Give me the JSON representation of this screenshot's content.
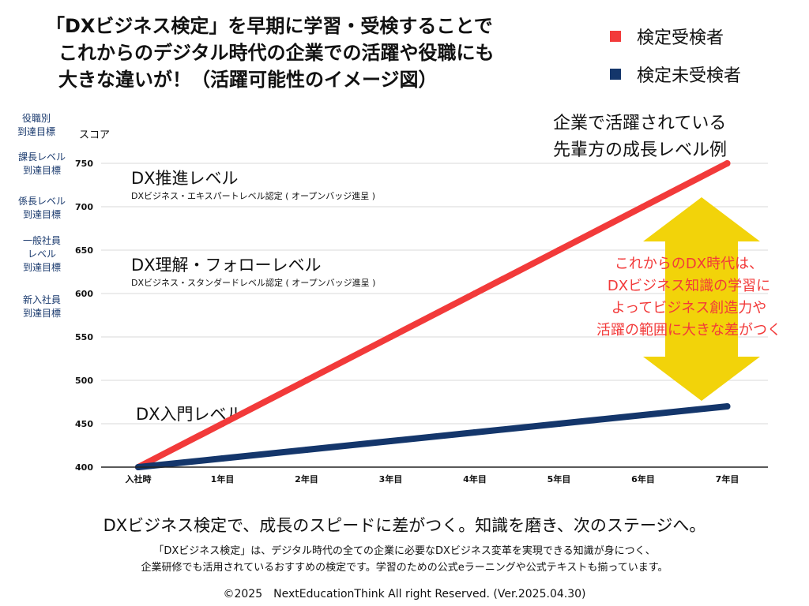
{
  "title_lines": [
    "「DXビジネス検定」を早期に学習・受検することで",
    "これからのデジタル時代の企業での活躍や役職にも",
    "大きな違いが！（活躍可能性のイメージ図）"
  ],
  "y_axis_role_header": [
    "役職別",
    "到達目標"
  ],
  "y_axis_score_header": "スコア",
  "role_labels": [
    {
      "lines": [
        "課長レベル",
        "到達目標"
      ]
    },
    {
      "lines": [
        "係長レベル",
        "到達目標"
      ]
    },
    {
      "lines": [
        "一般社員",
        "レベル",
        "到達目標"
      ]
    },
    {
      "lines": [
        "新入社員",
        "到達目標"
      ]
    }
  ],
  "example_label_lines": [
    "企業で活躍されている",
    "先輩方の成長レベル例"
  ],
  "level_annotations": [
    {
      "title": "DX推進レベル",
      "sub": "DXビジネス・エキスパートレベル認定 ( オープンバッジ進呈 )"
    },
    {
      "title": "DX理解・フォローレベル",
      "sub": "DXビジネス・スタンダードレベル認定 ( オープンバッジ進呈 )"
    },
    {
      "title": "DX入門レベル",
      "sub": ""
    }
  ],
  "arrow_text_lines": [
    "これからのDX時代は、",
    "DXビジネス知識の学習に",
    "よってビジネス創造力や",
    "活躍の範囲に大きな差がつく"
  ],
  "footer_main": "DXビジネス検定で、成長のスピードに差がつく。知識を磨き、次のステージへ。",
  "footer_sub_lines": [
    "「DXビジネス検定」は、デジタル時代の全ての企業に必要なDXビジネス変革を実現できる知識が身につく、",
    "企業研修でも活用されているおすすめの検定です。学習のための公式eラーニングや公式テキストも揃っています。"
  ],
  "copyright": "©2025　NextEducationThink All right Reserved. (Ver.2025.04.30)",
  "colors": {
    "red": "#f23a3a",
    "navy": "#14366b",
    "arrow": "#f2d30a",
    "arrow_text": "#f23a3a",
    "role_text": "#1a3a6e"
  },
  "chart_data": {
    "type": "line",
    "categories": [
      "入社時",
      "1年目",
      "2年目",
      "3年目",
      "4年目",
      "5年目",
      "6年目",
      "7年目"
    ],
    "series": [
      {
        "name": "検定受検者",
        "values": [
          400,
          450,
          500,
          550,
          600,
          650,
          700,
          750
        ],
        "color": "#f23a3a"
      },
      {
        "name": "検定未受検者",
        "values": [
          400,
          410,
          420,
          430,
          440,
          450,
          460,
          470
        ],
        "color": "#14366b"
      }
    ],
    "yticks": [
      400,
      450,
      500,
      550,
      600,
      650,
      700,
      750
    ],
    "ylim": [
      400,
      750
    ],
    "grid": true,
    "legend_position": "top-right"
  }
}
